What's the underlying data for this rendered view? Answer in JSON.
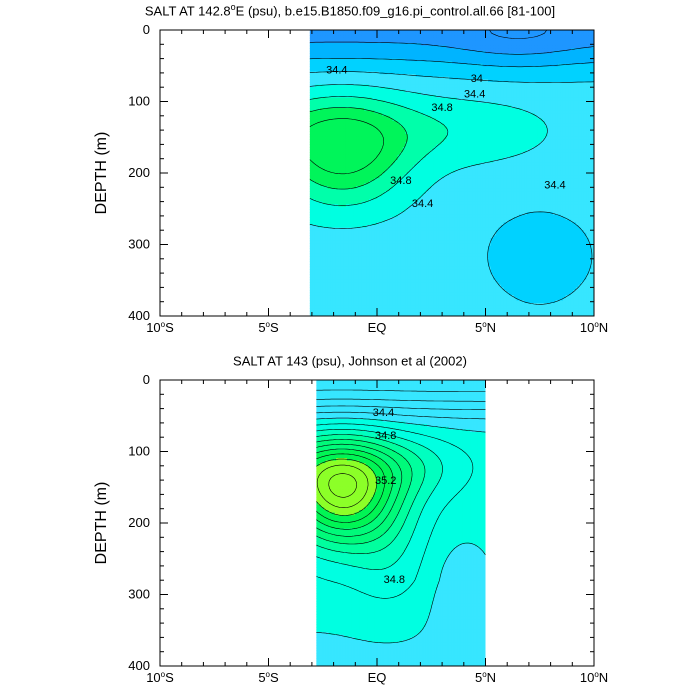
{
  "chart_data": [
    {
      "type": "contour",
      "title_main": "SALT AT 142.8",
      "title_sup": "o",
      "title_rest": "E (psu), b.e15.B1850.f09_g16.pi_control.all.66 [81-100]",
      "xlabel": "",
      "ylabel": "DEPTH (m)",
      "xlim": [
        -10,
        10
      ],
      "ylim": [
        0,
        400
      ],
      "y_inverted": true,
      "x_ticks": [
        {
          "value": -10,
          "main": "10",
          "sup": "o",
          "suffix": "S"
        },
        {
          "value": -5,
          "main": "5",
          "sup": "o",
          "suffix": "S"
        },
        {
          "value": 0,
          "main": "EQ",
          "sup": "",
          "suffix": ""
        },
        {
          "value": 5,
          "main": "5",
          "sup": "o",
          "suffix": "N"
        },
        {
          "value": 10,
          "main": "10",
          "sup": "o",
          "suffix": "N"
        }
      ],
      "y_ticks": [
        "0",
        "100",
        "200",
        "300",
        "400"
      ],
      "y_tick_values": [
        0,
        100,
        200,
        300,
        400
      ],
      "data_x_range": [
        -3.1,
        10
      ],
      "contour_interval": 0.2,
      "contour_labels": [
        {
          "text": "34.4",
          "x": -1.85,
          "y": 55
        },
        {
          "text": "34",
          "x": 4.6,
          "y": 67
        },
        {
          "text": "34.4",
          "x": 4.5,
          "y": 89
        },
        {
          "text": "34.8",
          "x": 3.0,
          "y": 108
        },
        {
          "text": "34.8",
          "x": 1.1,
          "y": 210
        },
        {
          "text": "34.4",
          "x": 2.1,
          "y": 242
        },
        {
          "text": "34.4",
          "x": 8.2,
          "y": 216
        }
      ],
      "levels": [
        {
          "value": 33.8,
          "color": "#1e96ff"
        },
        {
          "value": 34.0,
          "color": "#00b4ff"
        },
        {
          "value": 34.2,
          "color": "#00d2ff"
        },
        {
          "value": 34.4,
          "color": "#37e6ff"
        },
        {
          "value": 34.6,
          "color": "#00ffe1"
        },
        {
          "value": 34.8,
          "color": "#00ffaa"
        },
        {
          "value": 35.0,
          "color": "#00f55a"
        }
      ]
    },
    {
      "type": "contour",
      "title_main": "SALT AT 143 (psu), Johnson et al (2002)",
      "title_sup": "",
      "title_rest": "",
      "xlabel": "",
      "ylabel": "DEPTH (m)",
      "xlim": [
        -10,
        10
      ],
      "ylim": [
        0,
        400
      ],
      "y_inverted": true,
      "x_ticks": [
        {
          "value": -10,
          "main": "10",
          "sup": "o",
          "suffix": "S"
        },
        {
          "value": -5,
          "main": "5",
          "sup": "o",
          "suffix": "S"
        },
        {
          "value": 0,
          "main": "EQ",
          "sup": "",
          "suffix": ""
        },
        {
          "value": 5,
          "main": "5",
          "sup": "o",
          "suffix": "N"
        },
        {
          "value": 10,
          "main": "10",
          "sup": "o",
          "suffix": "N"
        }
      ],
      "y_ticks": [
        "0",
        "100",
        "200",
        "300",
        "400"
      ],
      "y_tick_values": [
        0,
        100,
        200,
        300,
        400
      ],
      "data_x_range": [
        -2.8,
        5
      ],
      "contour_interval": 0.1,
      "contour_labels": [
        {
          "text": "34.4",
          "x": 0.3,
          "y": 45
        },
        {
          "text": "34.8",
          "x": 0.4,
          "y": 77
        },
        {
          "text": "35.2",
          "x": 0.4,
          "y": 140
        },
        {
          "text": "34.8",
          "x": 0.8,
          "y": 278
        }
      ],
      "levels": [
        {
          "value": 34.3,
          "color": "#37e6ff"
        },
        {
          "value": 34.5,
          "color": "#00ffe1"
        },
        {
          "value": 34.7,
          "color": "#00ffc0"
        },
        {
          "value": 34.8,
          "color": "#00ff9e"
        },
        {
          "value": 34.9,
          "color": "#00fa7a"
        },
        {
          "value": 35.1,
          "color": "#00f555"
        },
        {
          "value": 35.3,
          "color": "#8cff28"
        }
      ]
    }
  ]
}
